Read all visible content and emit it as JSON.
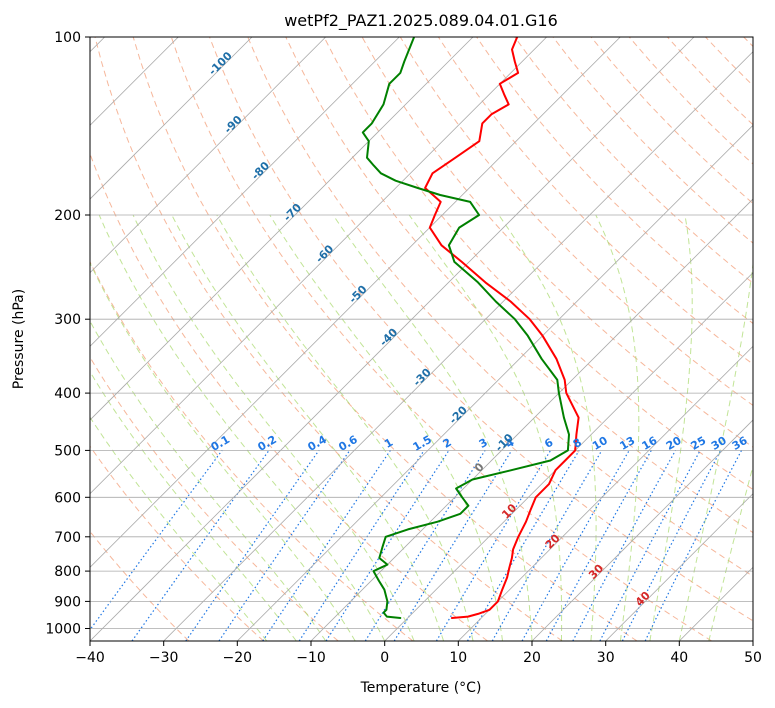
{
  "chart_data": {
    "type": "line",
    "title": "wetPf2_PAZ1.2025.089.04.01.G16",
    "xlabel": "Temperature (°C)",
    "ylabel": "Pressure (hPa)",
    "xlim": [
      -40,
      50
    ],
    "ylim": [
      1050,
      100
    ],
    "y_scale": "log",
    "skew": "skew-T",
    "grid": true,
    "x_ticks": [
      -40,
      -30,
      -20,
      -10,
      0,
      10,
      20,
      30,
      40,
      50
    ],
    "y_ticks": [
      1000,
      900,
      800,
      700,
      600,
      500,
      400,
      300,
      200,
      100
    ],
    "series": [
      {
        "color": "#ff0000",
        "pressure": [
          960,
          955,
          945,
          930,
          900,
          860,
          820,
          790,
          760,
          735,
          700,
          660,
          630,
          600,
          570,
          540,
          520,
          500,
          470,
          440,
          400,
          380,
          350,
          320,
          300,
          280,
          260,
          240,
          225,
          210,
          200,
          190,
          180,
          170,
          160,
          150,
          140,
          135,
          130,
          125,
          120,
          115,
          110,
          105,
          100
        ],
        "temperature": [
          6,
          8,
          9,
          10,
          10,
          9,
          8,
          7,
          6,
          5,
          4,
          3,
          2,
          1,
          1,
          0,
          0,
          0,
          -2,
          -4,
          -9,
          -11,
          -15,
          -20,
          -24,
          -29,
          -35,
          -41,
          -46,
          -50,
          -51,
          -52,
          -56,
          -57,
          -56,
          -55,
          -57,
          -57,
          -56,
          -58,
          -60,
          -59,
          -61,
          -63,
          -64
        ]
      },
      {
        "color": "#008000",
        "pressure": [
          960,
          955,
          940,
          930,
          900,
          860,
          830,
          800,
          780,
          760,
          730,
          700,
          680,
          660,
          640,
          620,
          600,
          580,
          560,
          540,
          520,
          500,
          470,
          440,
          400,
          380,
          350,
          320,
          300,
          280,
          260,
          240,
          225,
          210,
          200,
          190,
          185,
          180,
          175,
          170,
          165,
          160,
          150,
          145,
          140,
          130,
          120,
          115,
          110,
          100
        ],
        "temperature": [
          -1,
          -3,
          -4,
          -4,
          -5,
          -7,
          -9,
          -11,
          -10,
          -12,
          -13,
          -14,
          -12,
          -9,
          -7,
          -7,
          -9,
          -11,
          -10,
          -6,
          -2,
          -1,
          -3,
          -6,
          -10,
          -12,
          -17,
          -22,
          -26,
          -31,
          -36,
          -42,
          -45,
          -46,
          -45,
          -48,
          -53,
          -57,
          -61,
          -64,
          -66,
          -68,
          -70,
          -72,
          -72,
          -73,
          -75,
          -75,
          -76,
          -78
        ]
      }
    ],
    "dry_adiabat_labels": [
      "-100",
      "-90",
      "-80",
      "-70",
      "-60",
      "-50",
      "-40",
      "-30",
      "-20",
      "-10"
    ],
    "moist_adiabat_labels": [
      "0",
      "10",
      "20",
      "30",
      "40"
    ],
    "mixing_ratio_labels": [
      "0.1",
      "0.2",
      "0.4",
      "0.6",
      "1",
      "1.5",
      "2",
      "3",
      "4",
      "6",
      "8",
      "10",
      "13",
      "16",
      "20",
      "25",
      "30",
      "36"
    ],
    "colors": {
      "temperature": "#ff0000",
      "dewpoint": "#008000",
      "isotherm": "#aaaaaa",
      "dry_adiabat": "#f4a582",
      "moist_adiabat": "#a6d96a",
      "mixing_ratio": "#1f77e4"
    }
  }
}
